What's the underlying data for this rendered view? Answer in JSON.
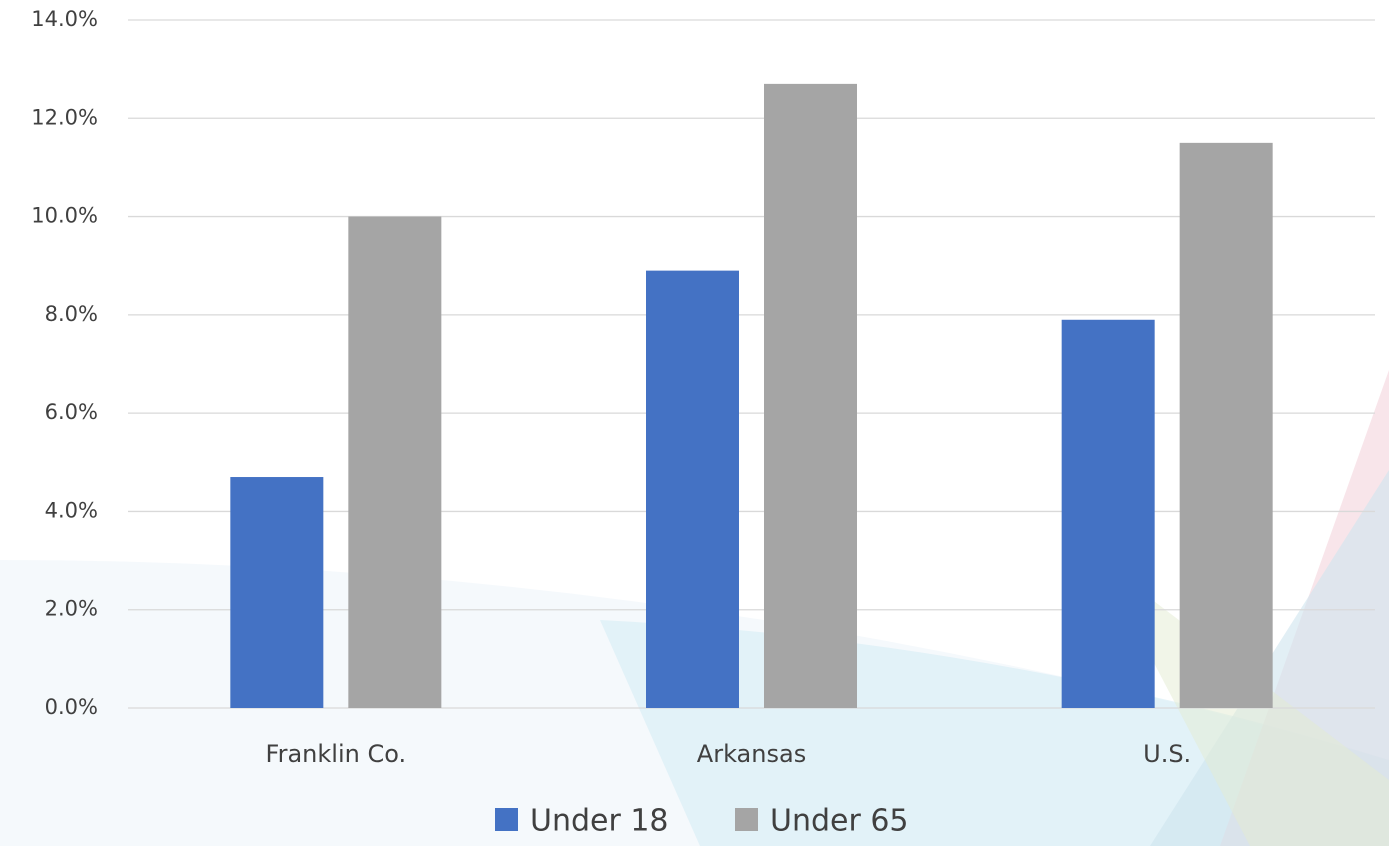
{
  "chart_data": {
    "type": "bar",
    "categories": [
      "Franklin Co.",
      "Arkansas",
      "U.S."
    ],
    "series": [
      {
        "name": "Under 18",
        "color": "#4472c4",
        "values": [
          4.7,
          8.9,
          7.9
        ]
      },
      {
        "name": "Under 65",
        "color": "#a5a5a5",
        "values": [
          10.0,
          12.7,
          11.5
        ]
      }
    ],
    "ylim": [
      0,
      14
    ],
    "yticks": [
      {
        "value": 0,
        "label": "0.0%"
      },
      {
        "value": 2,
        "label": "2.0%"
      },
      {
        "value": 4,
        "label": "4.0%"
      },
      {
        "value": 6,
        "label": "6.0%"
      },
      {
        "value": 8,
        "label": "8.0%"
      },
      {
        "value": 10,
        "label": "10.0%"
      },
      {
        "value": 12,
        "label": "12.0%"
      },
      {
        "value": 14,
        "label": "14.0%"
      }
    ],
    "grid": true,
    "legend": "bottom"
  }
}
